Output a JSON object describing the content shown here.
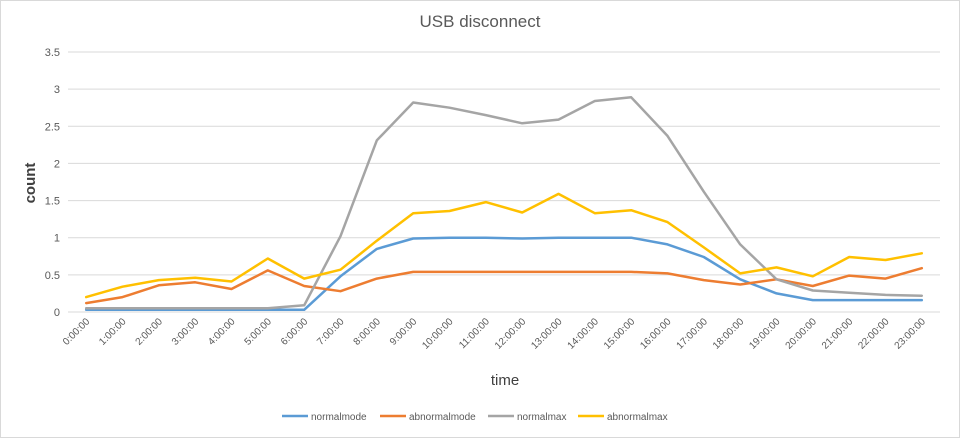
{
  "chart_data": {
    "type": "line",
    "title": "USB disconnect",
    "xlabel": "time",
    "ylabel": "count",
    "ylim": [
      0,
      3.5
    ],
    "yticks": [
      "0",
      "0.5",
      "1",
      "1.5",
      "2",
      "2.5",
      "3",
      "3.5"
    ],
    "grid": true,
    "legend_position": "bottom",
    "categories": [
      "0:00:00",
      "1:00:00",
      "2:00:00",
      "3:00:00",
      "4:00:00",
      "5:00:00",
      "6:00:00",
      "7:00:00",
      "8:00:00",
      "9:00:00",
      "10:00:00",
      "11:00:00",
      "12:00:00",
      "13:00:00",
      "14:00:00",
      "15:00:00",
      "16:00:00",
      "17:00:00",
      "18:00:00",
      "19:00:00",
      "20:00:00",
      "21:00:00",
      "22:00:00",
      "23:00:00"
    ],
    "series": [
      {
        "name": "normalmode",
        "color": "#5b9bd5",
        "values": [
          0.03,
          0.03,
          0.03,
          0.03,
          0.03,
          0.03,
          0.03,
          0.48,
          0.85,
          0.99,
          1.0,
          1.0,
          0.99,
          1.0,
          1.0,
          1.0,
          0.91,
          0.74,
          0.44,
          0.25,
          0.16,
          0.16,
          0.16,
          0.16
        ]
      },
      {
        "name": "abnormalmode",
        "color": "#ed7d31",
        "values": [
          0.12,
          0.2,
          0.36,
          0.4,
          0.31,
          0.56,
          0.35,
          0.28,
          0.45,
          0.54,
          0.54,
          0.54,
          0.54,
          0.54,
          0.54,
          0.54,
          0.52,
          0.43,
          0.37,
          0.44,
          0.35,
          0.49,
          0.45,
          0.59
        ]
      },
      {
        "name": "normalmax",
        "color": "#a5a5a5",
        "values": [
          0.05,
          0.05,
          0.05,
          0.05,
          0.05,
          0.05,
          0.09,
          1.02,
          2.31,
          2.82,
          2.75,
          2.65,
          2.54,
          2.59,
          2.84,
          2.89,
          2.37,
          1.62,
          0.91,
          0.44,
          0.29,
          0.26,
          0.23,
          0.22
        ]
      },
      {
        "name": "abnormalmax",
        "color": "#ffc000",
        "values": [
          0.2,
          0.34,
          0.43,
          0.46,
          0.41,
          0.72,
          0.45,
          0.57,
          0.96,
          1.33,
          1.36,
          1.48,
          1.34,
          1.59,
          1.33,
          1.37,
          1.21,
          0.87,
          0.52,
          0.6,
          0.48,
          0.74,
          0.7,
          0.79
        ]
      }
    ]
  }
}
